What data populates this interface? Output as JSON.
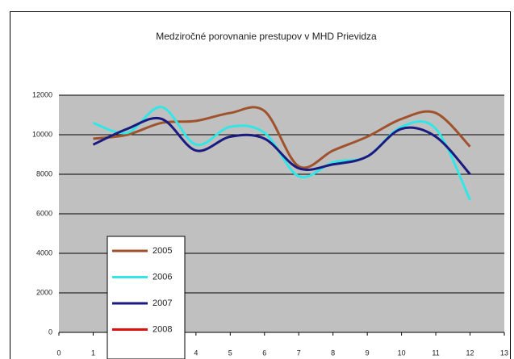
{
  "chart_data": {
    "type": "line",
    "title": "Medziročné porovnanie prestupov v MHD Prievidza",
    "x": [
      1,
      2,
      3,
      4,
      5,
      6,
      7,
      8,
      9,
      10,
      11,
      12
    ],
    "series": [
      {
        "name": "2005",
        "color": "#a0522d",
        "values": [
          9800,
          10000,
          10600,
          10700,
          11100,
          11200,
          8400,
          9200,
          9900,
          10800,
          11100,
          9400
        ]
      },
      {
        "name": "2006",
        "color": "#33e6e6",
        "values": [
          10600,
          10100,
          11400,
          9500,
          10400,
          10100,
          7900,
          8600,
          8900,
          10400,
          10300,
          6700
        ]
      },
      {
        "name": "2007",
        "color": "#1a1a80",
        "values": [
          9500,
          10300,
          10800,
          9200,
          9900,
          9800,
          8300,
          8500,
          8900,
          10300,
          9900,
          8000
        ]
      },
      {
        "name": "2008",
        "color": "#e01010",
        "values": [
          null,
          null,
          null,
          null,
          null,
          null,
          null,
          null,
          null,
          null,
          null,
          null
        ]
      }
    ],
    "xlim": [
      0,
      13
    ],
    "xticks": [
      0,
      1,
      2,
      3,
      4,
      5,
      6,
      7,
      8,
      9,
      10,
      11,
      12,
      13
    ],
    "ylim": [
      0,
      12000
    ],
    "yticks": [
      0,
      2000,
      4000,
      6000,
      8000,
      10000,
      12000
    ],
    "grid": true,
    "plot_background": "#c0c0c0",
    "legend": "lower left"
  }
}
